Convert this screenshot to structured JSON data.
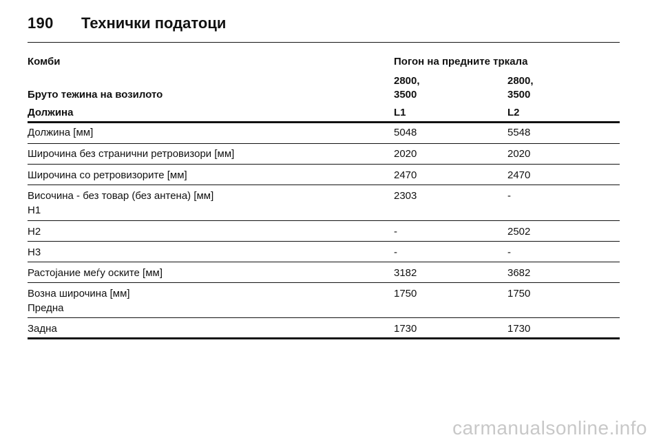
{
  "header": {
    "page_number": "190",
    "title": "Технички податоци"
  },
  "table": {
    "combi_label": "Комби",
    "drive_label": "Погон на предните тркала",
    "gross_weight_label": "Бруто тежина на возилото",
    "weights": [
      "2800,\n3500",
      "2800,\n3500"
    ],
    "length_label": "Должина",
    "variants": [
      "L1",
      "L2"
    ],
    "rows": [
      {
        "label": "Должина [мм]",
        "v1": "5048",
        "v2": "5548"
      },
      {
        "label": "Широчина без странични ретровизори [мм]",
        "v1": "2020",
        "v2": "2020"
      },
      {
        "label": "Широчина со ретровизорите [мм]",
        "v1": "2470",
        "v2": "2470"
      },
      {
        "label": "Височина - без товар (без антена) [мм]",
        "sublabel": "H1",
        "v1": "2303",
        "v2": "-"
      },
      {
        "label": "H2",
        "v1": "-",
        "v2": "2502"
      },
      {
        "label": "H3",
        "v1": "-",
        "v2": "-"
      },
      {
        "label": "Растојание меѓу оските [мм]",
        "v1": "3182",
        "v2": "3682"
      },
      {
        "label": "Возна широчина [мм]",
        "sublabel": "Предна",
        "v1": "1750",
        "v2": "1750"
      },
      {
        "label": "Задна",
        "v1": "1730",
        "v2": "1730"
      }
    ]
  },
  "watermark": "carmanualsonline.info"
}
